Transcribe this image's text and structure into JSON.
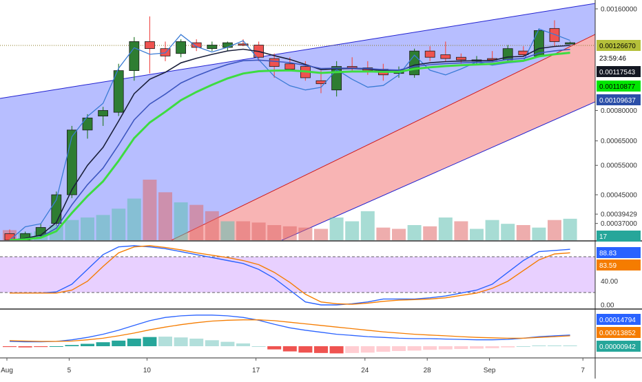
{
  "chart_data": [
    {
      "type": "candlestick",
      "panel": "price",
      "y_axis_ticks": [
        "0.00160000",
        "0.00080000",
        "0.00065000",
        "0.00055000",
        "0.00045000",
        "0.00039429",
        "0.00037000"
      ],
      "ylim": [
        0.00033,
        0.0017
      ],
      "y_scale": "log",
      "last_price_tag": "0.00126670",
      "countdown_tag": "23:59:46",
      "indicator_tags": [
        {
          "value": "0.00117543",
          "color": "#131722"
        },
        {
          "value": "0.00110877",
          "color": "#00e600"
        },
        {
          "value": "0.00109637",
          "color": "#2c4fa8"
        }
      ],
      "volume_tag": "17",
      "up_color": "#2e7d32",
      "down_color": "#ef5350",
      "candles": [
        {
          "o": 0.000345,
          "h": 0.000355,
          "l": 0.000325,
          "c": 0.00033
        },
        {
          "o": 0.00033,
          "h": 0.00035,
          "l": 0.00032,
          "c": 0.000345
        },
        {
          "o": 0.00034,
          "h": 0.00037,
          "l": 0.000335,
          "c": 0.00036
        },
        {
          "o": 0.00037,
          "h": 0.00046,
          "l": 0.000365,
          "c": 0.00045
        },
        {
          "o": 0.00045,
          "h": 0.00072,
          "l": 0.00044,
          "c": 0.0007
        },
        {
          "o": 0.0007,
          "h": 0.00078,
          "l": 0.00066,
          "c": 0.00076
        },
        {
          "o": 0.00077,
          "h": 0.00082,
          "l": 0.00072,
          "c": 0.0008
        },
        {
          "o": 0.00079,
          "h": 0.0011,
          "l": 0.00077,
          "c": 0.00105
        },
        {
          "o": 0.00105,
          "h": 0.00132,
          "l": 0.00098,
          "c": 0.00128
        },
        {
          "o": 0.00128,
          "h": 0.00152,
          "l": 0.00103,
          "c": 0.00122
        },
        {
          "o": 0.00122,
          "h": 0.00128,
          "l": 0.00112,
          "c": 0.00116
        },
        {
          "o": 0.00118,
          "h": 0.0013,
          "l": 0.00115,
          "c": 0.00128
        },
        {
          "o": 0.00127,
          "h": 0.0013,
          "l": 0.0012,
          "c": 0.00123
        },
        {
          "o": 0.00122,
          "h": 0.00128,
          "l": 0.0012,
          "c": 0.00125
        },
        {
          "o": 0.00123,
          "h": 0.00128,
          "l": 0.0012,
          "c": 0.00127
        },
        {
          "o": 0.00126,
          "h": 0.0013,
          "l": 0.00124,
          "c": 0.00125
        },
        {
          "o": 0.00125,
          "h": 0.00128,
          "l": 0.00112,
          "c": 0.00115
        },
        {
          "o": 0.00114,
          "h": 0.00118,
          "l": 0.001,
          "c": 0.00108
        },
        {
          "o": 0.0011,
          "h": 0.00115,
          "l": 0.00105,
          "c": 0.00106
        },
        {
          "o": 0.00108,
          "h": 0.00112,
          "l": 0.00098,
          "c": 0.001
        },
        {
          "o": 0.00098,
          "h": 0.00105,
          "l": 0.0009,
          "c": 0.00096
        },
        {
          "o": 0.00092,
          "h": 0.00112,
          "l": 0.00088,
          "c": 0.00108
        },
        {
          "o": 0.00108,
          "h": 0.00115,
          "l": 0.00105,
          "c": 0.00107
        },
        {
          "o": 0.00107,
          "h": 0.00112,
          "l": 0.00102,
          "c": 0.00105
        },
        {
          "o": 0.00106,
          "h": 0.0011,
          "l": 0.00098,
          "c": 0.00102
        },
        {
          "o": 0.00103,
          "h": 0.00108,
          "l": 0.001,
          "c": 0.00104
        },
        {
          "o": 0.00102,
          "h": 0.00122,
          "l": 0.001,
          "c": 0.0012
        },
        {
          "o": 0.0012,
          "h": 0.00124,
          "l": 0.00112,
          "c": 0.00115
        },
        {
          "o": 0.00117,
          "h": 0.00128,
          "l": 0.00112,
          "c": 0.00114
        },
        {
          "o": 0.00115,
          "h": 0.00118,
          "l": 0.0011,
          "c": 0.00113
        },
        {
          "o": 0.00113,
          "h": 0.00116,
          "l": 0.0011,
          "c": 0.00113
        },
        {
          "o": 0.00114,
          "h": 0.0012,
          "l": 0.00112,
          "c": 0.00113
        },
        {
          "o": 0.00113,
          "h": 0.00125,
          "l": 0.00112,
          "c": 0.00122
        },
        {
          "o": 0.0012,
          "h": 0.00124,
          "l": 0.00116,
          "c": 0.00117
        },
        {
          "o": 0.00116,
          "h": 0.0014,
          "l": 0.00115,
          "c": 0.00138
        },
        {
          "o": 0.0014,
          "h": 0.00148,
          "l": 0.00124,
          "c": 0.00128
        },
        {
          "o": 0.00127,
          "h": 0.00128,
          "l": 0.00126,
          "c": 0.00127
        }
      ],
      "volumes": [
        0.8,
        0.6,
        0.7,
        1.2,
        1.6,
        1.8,
        2.0,
        2.5,
        3.3,
        4.8,
        3.8,
        3.0,
        2.8,
        2.3,
        1.5,
        1.5,
        1.4,
        1.2,
        1.1,
        1.0,
        0.9,
        1.8,
        1.5,
        2.3,
        1.0,
        0.9,
        1.2,
        1.1,
        1.8,
        1.5,
        0.9,
        1.6,
        1.3,
        1.2,
        1.0,
        1.6,
        1.7
      ],
      "volume_up": [
        false,
        true,
        true,
        true,
        true,
        true,
        true,
        true,
        true,
        false,
        false,
        true,
        false,
        false,
        true,
        false,
        false,
        false,
        false,
        false,
        false,
        true,
        true,
        true,
        false,
        false,
        true,
        false,
        true,
        false,
        true,
        true,
        true,
        false,
        true,
        false,
        true
      ]
    },
    {
      "type": "line",
      "panel": "stochastic_rsi",
      "y_axis_ticks": [
        "40.00",
        "0.00"
      ],
      "ylim": [
        0,
        100
      ],
      "upper_band": 80,
      "lower_band": 20,
      "tags": [
        {
          "value": "88.83",
          "color": "#2962ff"
        },
        {
          "value": "83.59",
          "color": "#f57c00"
        }
      ],
      "series": [
        {
          "values": [
            20,
            20,
            20,
            22,
            35,
            60,
            85,
            98,
            100,
            98,
            95,
            90,
            85,
            80,
            75,
            70,
            60,
            45,
            25,
            5,
            0,
            0,
            2,
            5,
            10,
            10,
            10,
            12,
            15,
            20,
            25,
            35,
            55,
            75,
            90,
            92,
            94
          ]
        },
        {
          "values": [
            20,
            20,
            20,
            20,
            25,
            40,
            65,
            88,
            98,
            100,
            97,
            93,
            88,
            84,
            80,
            75,
            68,
            55,
            38,
            18,
            5,
            2,
            1,
            3,
            6,
            8,
            9,
            10,
            12,
            16,
            20,
            28,
            40,
            58,
            76,
            86,
            88
          ]
        }
      ]
    },
    {
      "type": "line",
      "panel": "macd",
      "tags": [
        {
          "value": "0.00014794",
          "color": "#2962ff"
        },
        {
          "value": "0.00013852",
          "color": "#f57c00"
        },
        {
          "value": "0.00000942",
          "color": "#26a69a"
        }
      ],
      "series": [
        {
          "values": [
            0.12,
            0.11,
            0.11,
            0.12,
            0.16,
            0.22,
            0.3,
            0.4,
            0.52,
            0.64,
            0.72,
            0.76,
            0.78,
            0.78,
            0.76,
            0.72,
            0.65,
            0.55,
            0.46,
            0.4,
            0.35,
            0.3,
            0.27,
            0.24,
            0.22,
            0.2,
            0.19,
            0.19,
            0.18,
            0.17,
            0.16,
            0.16,
            0.17,
            0.2,
            0.24,
            0.26,
            0.28
          ]
        },
        {
          "values": [
            0.14,
            0.13,
            0.12,
            0.12,
            0.13,
            0.16,
            0.2,
            0.26,
            0.33,
            0.41,
            0.48,
            0.54,
            0.59,
            0.63,
            0.65,
            0.66,
            0.66,
            0.64,
            0.6,
            0.56,
            0.52,
            0.48,
            0.44,
            0.4,
            0.36,
            0.33,
            0.3,
            0.28,
            0.26,
            0.24,
            0.22,
            0.21,
            0.2,
            0.2,
            0.22,
            0.24,
            0.26
          ]
        }
      ],
      "histogram": [
        -0.02,
        -0.03,
        -0.02,
        0.0,
        0.03,
        0.06,
        0.1,
        0.14,
        0.19,
        0.23,
        0.24,
        0.22,
        0.19,
        0.15,
        0.11,
        0.07,
        0.0,
        -0.08,
        -0.13,
        -0.16,
        -0.17,
        -0.18,
        -0.17,
        -0.16,
        -0.14,
        -0.12,
        -0.11,
        -0.09,
        -0.08,
        -0.07,
        -0.06,
        -0.05,
        -0.03,
        0.0,
        0.02,
        0.02,
        0.02
      ]
    }
  ],
  "x_axis_labels": [
    {
      "label": "Aug",
      "index": 0
    },
    {
      "label": "5",
      "index": 4
    },
    {
      "label": "10",
      "index": 9
    },
    {
      "label": "17",
      "index": 16
    },
    {
      "label": "24",
      "index": 23
    },
    {
      "label": "28",
      "index": 27
    },
    {
      "label": "Sep",
      "index": 31
    },
    {
      "label": "7",
      "index": 37
    }
  ],
  "colors": {
    "channel_upper_fill": "#9fa8ff",
    "channel_lower_fill": "#f7a7a7",
    "stoch_band_fill": "#e8d0ff",
    "ema_dark": "#1a1f3a",
    "ema_blue": "#3d56c0",
    "ema_green": "#3ddc40",
    "overlay_line": "#3a7bd5"
  }
}
